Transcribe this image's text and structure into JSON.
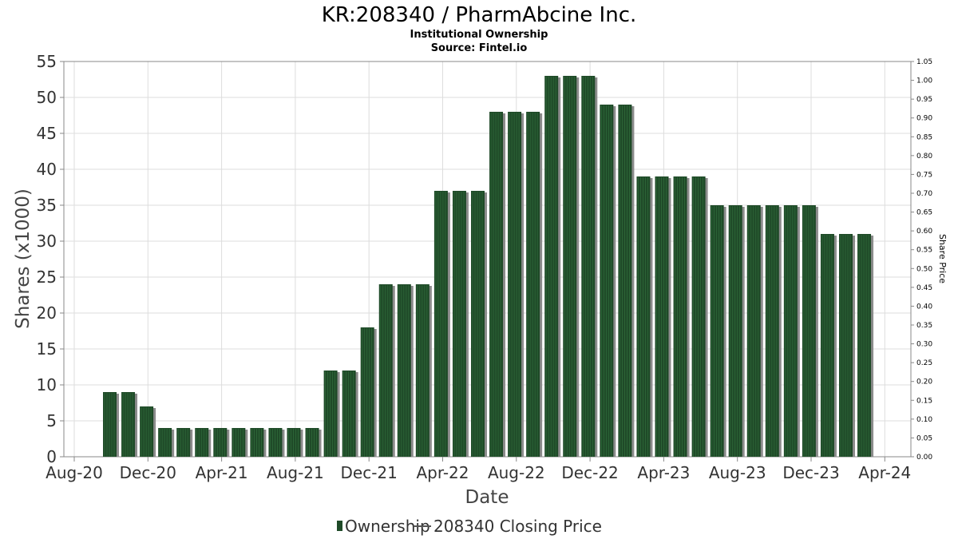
{
  "header": {
    "title": "KR:208340 / PharmAbcine Inc.",
    "subtitle1": "Institutional Ownership",
    "subtitle2": "Source: Fintel.io"
  },
  "colors": {
    "bar": "#1f4a28",
    "bar_stripe": "#2f6a3a",
    "bar_shadow": "#8c8c8c",
    "grid": "#dddddd",
    "axis": "#888888"
  },
  "legend": {
    "ownership_label": "Ownership",
    "price_label": "208340 Closing Price"
  },
  "chart_data": {
    "type": "bar",
    "title": "KR:208340 / PharmAbcine Inc.",
    "xlabel": "Date",
    "ylabel": "Shares (x1000)",
    "y2label": "Share Price",
    "ylim": [
      0,
      55
    ],
    "y2lim": [
      0,
      1.05
    ],
    "y_ticks": [
      "0",
      "5",
      "10",
      "15",
      "20",
      "25",
      "30",
      "35",
      "40",
      "45",
      "50",
      "55"
    ],
    "y2_ticks": [
      "0.00",
      "0.05",
      "0.10",
      "0.15",
      "0.20",
      "0.25",
      "0.30",
      "0.35",
      "0.40",
      "0.45",
      "0.50",
      "0.55",
      "0.60",
      "0.65",
      "0.70",
      "0.75",
      "0.80",
      "0.85",
      "0.90",
      "0.95",
      "1.00",
      "1.05"
    ],
    "x_ticks": [
      "Aug-20",
      "Dec-20",
      "Apr-21",
      "Aug-21",
      "Dec-21",
      "Apr-22",
      "Aug-22",
      "Dec-22",
      "Apr-23",
      "Aug-23",
      "Dec-23",
      "Apr-24"
    ],
    "grid": true,
    "legend_position": "bottom",
    "series": [
      {
        "name": "Ownership",
        "values": [
          9,
          9,
          7,
          4,
          4,
          4,
          4,
          4,
          4,
          4,
          4,
          4,
          12,
          12,
          18,
          24,
          24,
          24,
          37,
          37,
          37,
          48,
          48,
          48,
          53,
          53,
          53,
          49,
          49,
          39,
          39,
          39,
          39,
          35,
          35,
          35,
          35,
          35,
          35,
          31,
          31,
          31
        ]
      }
    ]
  }
}
